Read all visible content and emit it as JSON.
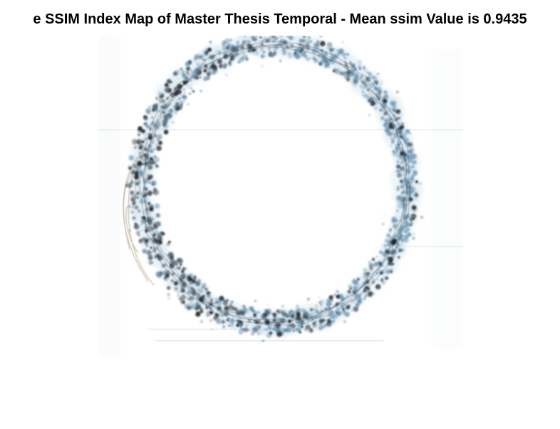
{
  "figure": {
    "title": "e SSIM Index Map of Master Thesis Temporal - Mean ssim Value is 0.9435",
    "colors": {
      "background": "#ffffff",
      "ring_dark": "#1b1f24",
      "ring_mid": "#4d6270",
      "ring_blue": "#6f9ab8",
      "ring_light": "#b9d2e2",
      "stroke_tan": "#b8a48c"
    }
  }
}
